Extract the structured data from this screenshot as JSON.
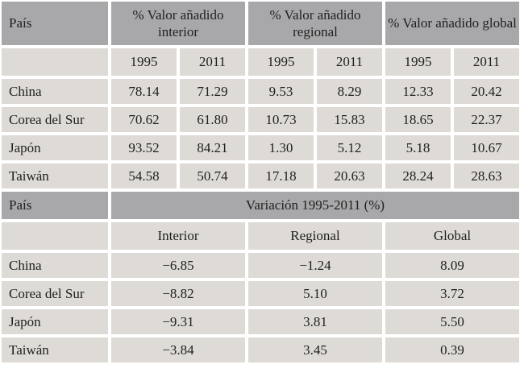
{
  "colors": {
    "header_bg": "#a8a8aa",
    "cell_bg": "#dedbd6",
    "text": "#1f1f1f",
    "page_bg": "#ffffff"
  },
  "table1": {
    "country_header": "País",
    "group_headers": [
      "% Valor añadido interior",
      "% Valor añadido regional",
      "% Valor añadido global"
    ],
    "year_headers": [
      "1995",
      "2011",
      "1995",
      "2011",
      "1995",
      "2011"
    ],
    "rows": [
      {
        "country": "China",
        "values": [
          "78.14",
          "71.29",
          "9.53",
          "8.29",
          "12.33",
          "20.42"
        ]
      },
      {
        "country": "Corea del Sur",
        "values": [
          "70.62",
          "61.80",
          "10.73",
          "15.83",
          "18.65",
          "22.37"
        ]
      },
      {
        "country": "Japón",
        "values": [
          "93.52",
          "84.21",
          "1.30",
          "5.12",
          "5.18",
          "10.67"
        ]
      },
      {
        "country": "Taiwán",
        "values": [
          "54.58",
          "50.74",
          "17.18",
          "20.63",
          "28.24",
          "28.63"
        ]
      }
    ]
  },
  "table2": {
    "country_header": "País",
    "section_header": "Variación 1995-2011 (%)",
    "col_headers": [
      "Interior",
      "Regional",
      "Global"
    ],
    "rows": [
      {
        "country": "China",
        "values": [
          "−6.85",
          "−1.24",
          "8.09"
        ]
      },
      {
        "country": "Corea del Sur",
        "values": [
          "−8.82",
          "5.10",
          "3.72"
        ]
      },
      {
        "country": "Japón",
        "values": [
          "−9.31",
          "3.81",
          "5.50"
        ]
      },
      {
        "country": "Taiwán",
        "values": [
          "−3.84",
          "3.45",
          "0.39"
        ]
      }
    ]
  }
}
